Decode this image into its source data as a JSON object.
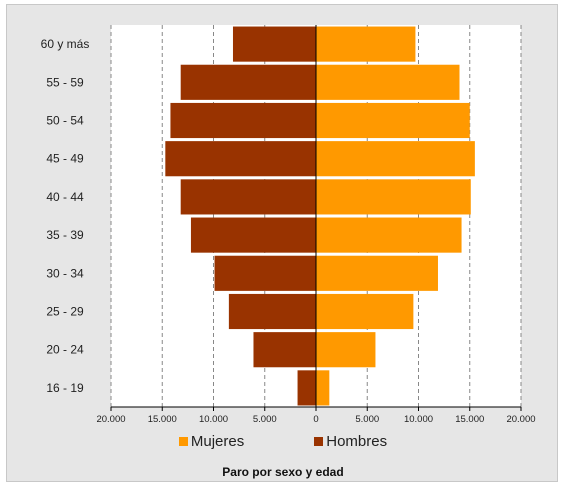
{
  "chart_data": {
    "type": "bar",
    "orientation": "horizontal",
    "layout": "population-pyramid",
    "title": "Paro por sexo y edad",
    "categories": [
      "60 y más",
      "55 - 59",
      "50 - 54",
      "45 - 49",
      "40 - 44",
      "35 - 39",
      "30 - 34",
      "25 - 29",
      "20 - 24",
      "16 - 19"
    ],
    "series": [
      {
        "name": "Mujeres",
        "side": "right",
        "color": "#ff9900",
        "values": [
          9700,
          14000,
          15000,
          15500,
          15100,
          14200,
          11900,
          9500,
          5800,
          1300
        ]
      },
      {
        "name": "Hombres",
        "side": "left",
        "color": "#993300",
        "values": [
          8100,
          13200,
          14200,
          14700,
          13200,
          12200,
          9900,
          8500,
          6100,
          1800
        ]
      }
    ],
    "x_range": [
      -20000,
      20000
    ],
    "x_ticks": [
      -20000,
      -15000,
      -10000,
      -5000,
      0,
      5000,
      10000,
      15000,
      20000
    ],
    "x_tick_labels": [
      "20.000",
      "15.000",
      "10.000",
      "5.000",
      "0",
      "5.000",
      "10.000",
      "15.000",
      "20.000"
    ],
    "grid": "vertical-dashed",
    "legend_position": "bottom",
    "background": "#e6e6e6",
    "plot_background": "#ffffff"
  }
}
